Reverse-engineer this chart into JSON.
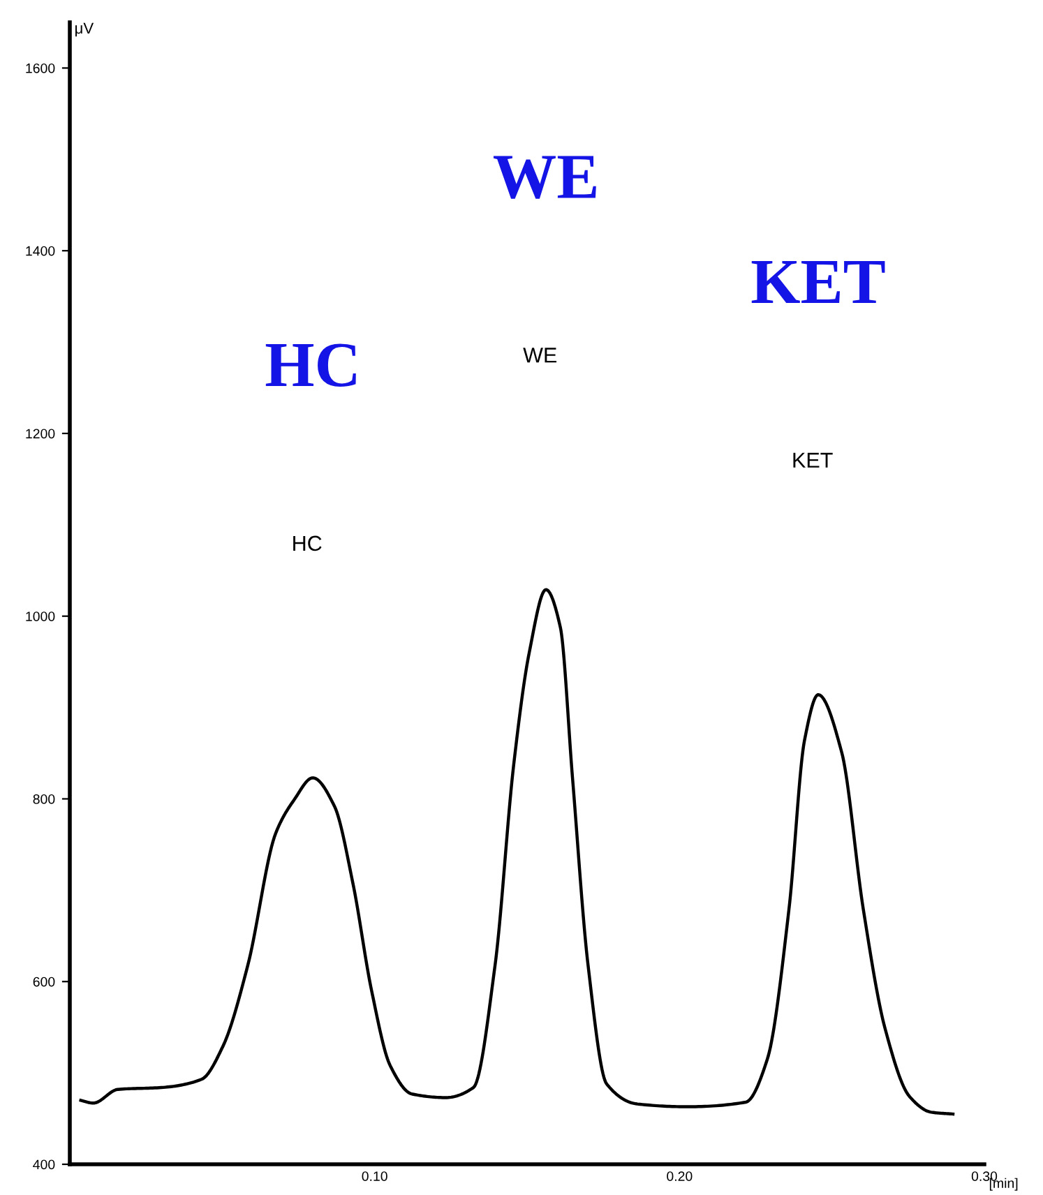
{
  "chart_data": {
    "type": "line",
    "xlabel": "[min]",
    "ylabel": "μV",
    "xlim": [
      0,
      0.3
    ],
    "ylim": [
      400,
      1650
    ],
    "xticks": [
      {
        "value": 0.1,
        "label": "0.10"
      },
      {
        "value": 0.2,
        "label": "0.20"
      },
      {
        "value": 0.3,
        "label": "0.30"
      }
    ],
    "yticks": [
      400,
      600,
      800,
      1000,
      1200,
      1400,
      1600
    ],
    "grid": false,
    "legend": false,
    "marker": "none",
    "line_style": "solid",
    "series": [
      {
        "color": "#000000",
        "x": [
          0.0036,
          0.0077,
          0.0158,
          0.03,
          0.0432,
          0.0502,
          0.0584,
          0.0675,
          0.0736,
          0.0797,
          0.0868,
          0.0929,
          0.099,
          0.1051,
          0.1122,
          0.1233,
          0.1324,
          0.1395,
          0.1456,
          0.1507,
          0.1562,
          0.1609,
          0.1649,
          0.17,
          0.1761,
          0.1862,
          0.2024,
          0.2217,
          0.2288,
          0.2359,
          0.241,
          0.2455,
          0.2532,
          0.2603,
          0.2674,
          0.2755,
          0.2826,
          0.2897
        ],
        "values": [
          470,
          467,
          482,
          484,
          493,
          529,
          618,
          762,
          799,
          823,
          792,
          707,
          590,
          508,
          477,
          473,
          484,
          618,
          837,
          960,
          1029,
          988,
          823,
          618,
          488,
          466,
          463,
          468,
          515,
          679,
          864,
          914,
          851,
          679,
          549,
          474,
          457,
          455
        ]
      }
    ],
    "annotations": [
      "HC",
      "WE",
      "KET",
      "HC",
      "WE",
      "KET"
    ]
  }
}
